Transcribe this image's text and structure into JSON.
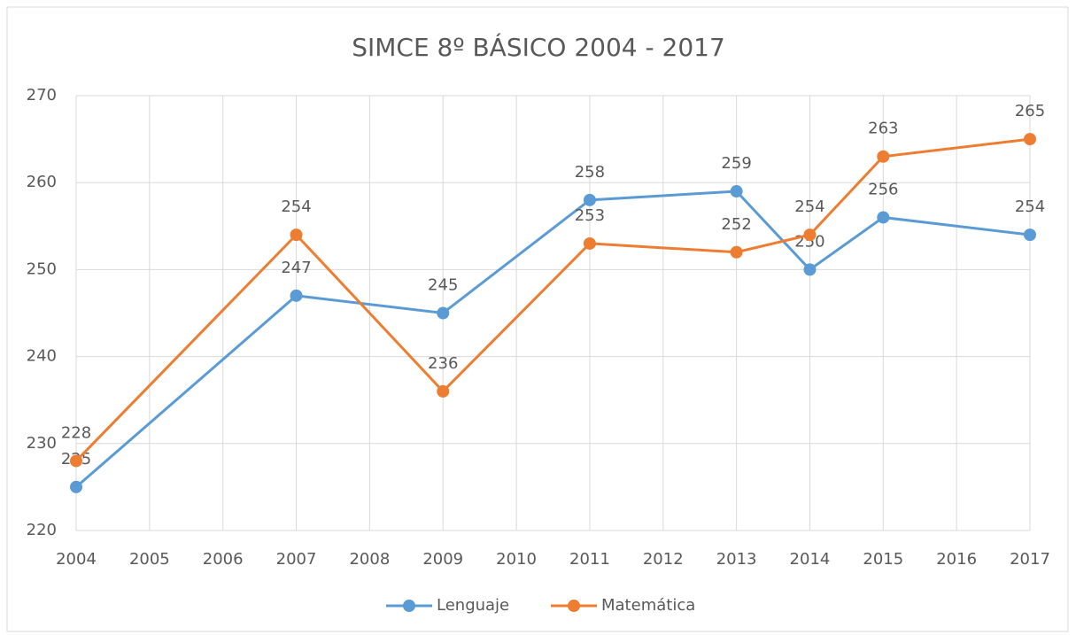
{
  "chart_data": {
    "type": "line",
    "title": "SIMCE 8º BÁSICO 2004 - 2017",
    "x": [
      2004,
      2007,
      2009,
      2011,
      2013,
      2014,
      2015,
      2017
    ],
    "xlim": [
      2004,
      2017
    ],
    "xticks": [
      2004,
      2005,
      2006,
      2007,
      2008,
      2009,
      2010,
      2011,
      2012,
      2013,
      2014,
      2015,
      2016,
      2017
    ],
    "ylim": [
      220,
      270
    ],
    "yticks": [
      220,
      230,
      240,
      250,
      260,
      270
    ],
    "grid": true,
    "series": [
      {
        "name": "Lenguaje",
        "color": "#5b9bd5",
        "values": [
          225,
          247,
          245,
          258,
          259,
          250,
          256,
          254
        ]
      },
      {
        "name": "Matemática",
        "color": "#ed7d31",
        "values": [
          228,
          254,
          236,
          253,
          252,
          254,
          263,
          265
        ]
      }
    ]
  }
}
